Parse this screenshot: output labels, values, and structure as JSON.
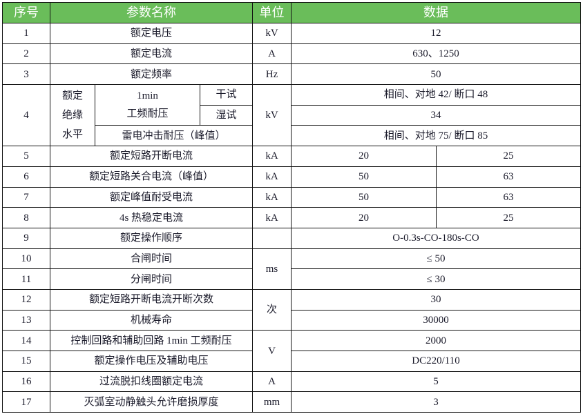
{
  "header": {
    "index": "序号",
    "param": "参数名称",
    "unit": "单位",
    "data": "数据"
  },
  "colors": {
    "header_bg": "#6abd5a",
    "header_text": "#ffffff",
    "border": "#111111"
  },
  "rows": [
    {
      "index": "1",
      "name": "额定电压",
      "unit": "kV",
      "value": "12"
    },
    {
      "index": "2",
      "name": "额定电流",
      "unit": "A",
      "value": "630、1250"
    },
    {
      "index": "3",
      "name": "额定频率",
      "unit": "Hz",
      "value": "50"
    },
    {
      "index": "4",
      "group": "额定绝缘水平",
      "group_lines": [
        "额定",
        "绝缘",
        "水平"
      ],
      "sub1_line1": "1min",
      "sub1_line2": "工频耐压",
      "dry": "干试",
      "wet": "湿试",
      "sub2": "雷电冲击耐压（峰值）",
      "unit": "kV",
      "value_dry": "相间、对地 42/ 断口 48",
      "value_wet": "34",
      "value_impulse": "相间、对地 75/ 断口 85"
    },
    {
      "index": "5",
      "name": "额定短路开断电流",
      "unit": "kA",
      "value_a": "20",
      "value_b": "25"
    },
    {
      "index": "6",
      "name": "额定短路关合电流（峰值）",
      "unit": "kA",
      "value_a": "50",
      "value_b": "63"
    },
    {
      "index": "7",
      "name": "额定峰值耐受电流",
      "unit": "kA",
      "value_a": "50",
      "value_b": "63"
    },
    {
      "index": "8",
      "name": "4s 热稳定电流",
      "unit": "kA",
      "value_a": "20",
      "value_b": "25"
    },
    {
      "index": "9",
      "name": "额定操作顺序",
      "unit": "",
      "value": "O-0.3s-CO-180s-CO"
    },
    {
      "index": "10",
      "name": "合闸时间",
      "unit": "ms",
      "value": "≤ 50"
    },
    {
      "index": "11",
      "name": "分闸时间",
      "value": "≤ 30"
    },
    {
      "index": "12",
      "name": "额定短路开断电流开断次数",
      "unit": "次",
      "value": "30"
    },
    {
      "index": "13",
      "name": "机械寿命",
      "value": "30000"
    },
    {
      "index": "14",
      "name": "控制回路和辅助回路 1min 工频耐压",
      "unit": "V",
      "value": "2000"
    },
    {
      "index": "15",
      "name": "额定操作电压及辅助电压",
      "value": "DC220/110"
    },
    {
      "index": "16",
      "name": "过流脱扣线圈额定电流",
      "unit": "A",
      "value": "5"
    },
    {
      "index": "17",
      "name": "灭弧室动静触头允许磨损厚度",
      "unit": "mm",
      "value": "3"
    }
  ]
}
